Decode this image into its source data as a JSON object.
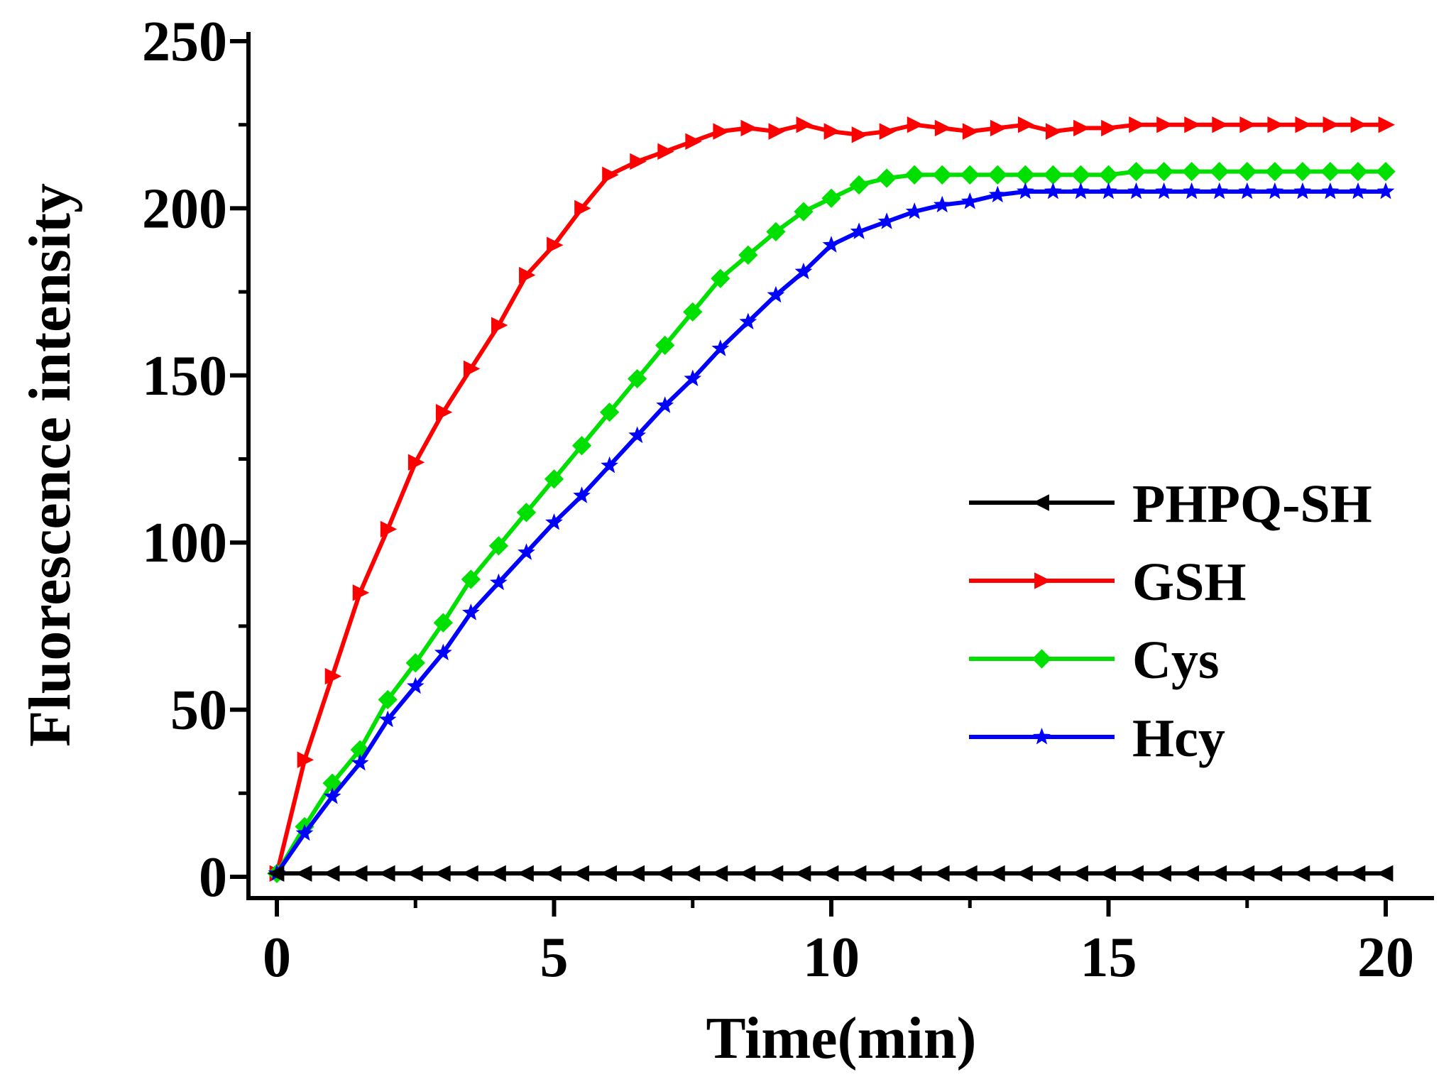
{
  "chart_data": {
    "type": "line",
    "title": "",
    "xlabel": "Time(min)",
    "ylabel": "Fluorescence intensity",
    "xlim": [
      -0.5,
      21
    ],
    "ylim": [
      -5,
      250
    ],
    "xticks": [
      0,
      5,
      10,
      15,
      20
    ],
    "xtick_labels": [
      "0",
      "5",
      "10",
      "15",
      "20"
    ],
    "yticks": [
      0,
      50,
      100,
      150,
      200,
      250
    ],
    "ytick_labels": [
      "0",
      "50",
      "100",
      "150",
      "200",
      "250"
    ],
    "legend_position": "center-right",
    "grid": false,
    "x": [
      0,
      0.5,
      1,
      1.5,
      2,
      2.5,
      3,
      3.5,
      4,
      4.5,
      5,
      5.5,
      6,
      6.5,
      7,
      7.5,
      8,
      8.5,
      9,
      9.5,
      10,
      10.5,
      11,
      11.5,
      12,
      12.5,
      13,
      13.5,
      14,
      14.5,
      15,
      15.5,
      16,
      16.5,
      17,
      17.5,
      18,
      18.5,
      19,
      19.5,
      20
    ],
    "series": [
      {
        "name": "PHPQ-SH",
        "color": "#000000",
        "marker": "triangle-left",
        "values": [
          1,
          1,
          1,
          1,
          1,
          1,
          1,
          1,
          1,
          1,
          1,
          1,
          1,
          1,
          1,
          1,
          1,
          1,
          1,
          1,
          1,
          1,
          1,
          1,
          1,
          1,
          1,
          1,
          1,
          1,
          1,
          1,
          1,
          1,
          1,
          1,
          1,
          1,
          1,
          1,
          1
        ]
      },
      {
        "name": "GSH",
        "color": "#ff0000",
        "marker": "triangle-right",
        "values": [
          1,
          35,
          60,
          85,
          104,
          124,
          139,
          152,
          165,
          180,
          189,
          200,
          210,
          214,
          217,
          220,
          223,
          224,
          223,
          225,
          223,
          222,
          223,
          225,
          224,
          223,
          224,
          225,
          223,
          224,
          224,
          225,
          225,
          225,
          225,
          225,
          225,
          225,
          225,
          225,
          225
        ]
      },
      {
        "name": "Cys",
        "color": "#00e000",
        "marker": "diamond",
        "values": [
          1,
          15,
          28,
          38,
          53,
          64,
          76,
          89,
          99,
          109,
          119,
          129,
          139,
          149,
          159,
          169,
          179,
          186,
          193,
          199,
          203,
          207,
          209,
          210,
          210,
          210,
          210,
          210,
          210,
          210,
          210,
          211,
          211,
          211,
          211,
          211,
          211,
          211,
          211,
          211,
          211
        ]
      },
      {
        "name": "Hcy",
        "color": "#0000ff",
        "marker": "star",
        "values": [
          1,
          13,
          24,
          34,
          47,
          57,
          67,
          79,
          88,
          97,
          106,
          114,
          123,
          132,
          141,
          149,
          158,
          166,
          174,
          181,
          189,
          193,
          196,
          199,
          201,
          202,
          204,
          205,
          205,
          205,
          205,
          205,
          205,
          205,
          205,
          205,
          205,
          205,
          205,
          205,
          205
        ]
      }
    ]
  }
}
